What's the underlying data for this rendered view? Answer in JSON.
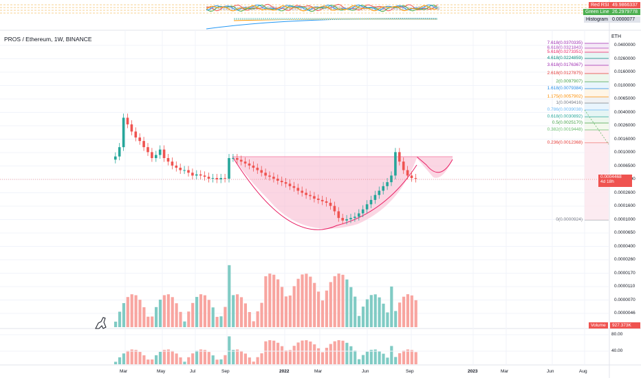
{
  "chart_title": "PROS / Ethereum, 1W, BINANCE",
  "price_unit": "ETH",
  "indicator": {
    "rsi_label": "Red RSI",
    "rsi_value": "49.9866337",
    "rsi_color": "#ef5350",
    "green_label": "Green Line",
    "green_value": "26.2979778",
    "green_color": "#4caf50",
    "hist_label": "Histogram",
    "hist_value": "0.0000077",
    "hist_color": "#b2b5be"
  },
  "price_axis_ticks": [
    "0.0400000",
    "0.0260000",
    "0.0160000",
    "0.0100000",
    "0.0065000",
    "0.0040000",
    "0.0026000",
    "0.0016000",
    "0.0010000",
    "0.0006500",
    "0.0004000",
    "0.0002600",
    "0.0001600",
    "0.0001000",
    "0.0000650",
    "0.0000400",
    "0.0000260",
    "0.0000170",
    "0.0000110",
    "0.0000070",
    "0.0000046"
  ],
  "current_price": "0.0004468",
  "countdown": "4d 18h",
  "volume_label": "Volume",
  "volume_value": "927.373K",
  "lower_axis_ticks": [
    "80.00",
    "40.00"
  ],
  "fib_levels": [
    {
      "label": "7.618(0.0370335)",
      "color": "#9c27b0"
    },
    {
      "label": "6.618(0.0321843)",
      "color": "#ab47bc"
    },
    {
      "label": "5.618(0.0273351)",
      "color": "#e91e63"
    },
    {
      "label": "4.618(0.0224859)",
      "color": "#00897b"
    },
    {
      "label": "3.618(0.0176367)",
      "color": "#9c27b0"
    },
    {
      "label": "2.618(0.0127875)",
      "color": "#e53935"
    },
    {
      "label": "2(0.0097907)",
      "color": "#43a047"
    },
    {
      "label": "1.618(0.0079384)",
      "color": "#1e88e5"
    },
    {
      "label": "1.175(0.0057902)",
      "color": "#fb8c00"
    },
    {
      "label": "1(0.0049416)",
      "color": "#787b86"
    },
    {
      "label": "0.786(0.0039038)",
      "color": "#64b5f6"
    },
    {
      "label": "0.618(0.0030892)",
      "color": "#26a69a"
    },
    {
      "label": "0.5(0.0025170)",
      "color": "#43a047"
    },
    {
      "label": "0.382(0.0019448)",
      "color": "#66bb6a"
    },
    {
      "label": "0.236(0.0012368)",
      "color": "#e53935"
    },
    {
      "label": "0(0.0000924)",
      "color": "#787b86"
    }
  ],
  "time_axis_ticks": [
    "Mar",
    "May",
    "Jul",
    "Sep",
    "2022",
    "Mar",
    "Jun",
    "Sep",
    "2023",
    "Mar",
    "Jun",
    "Aug"
  ],
  "chart_data": {
    "type": "candlestick",
    "title": "PROS / Ethereum, 1W, BINANCE",
    "scale": "log",
    "y_unit": "ETH",
    "up_color": "#26a69a",
    "down_color": "#ef5350",
    "pattern": "cup and handle",
    "candles_close_approx": [
      0.00095,
      0.0013,
      0.0035,
      0.0028,
      0.0022,
      0.0018,
      0.0016,
      0.0013,
      0.0011,
      0.0009,
      0.001,
      0.0012,
      0.0009,
      0.0008,
      0.0007,
      0.00065,
      0.0006,
      0.0006,
      0.00055,
      0.0005,
      0.00052,
      0.0005,
      0.00048,
      0.00045,
      0.00046,
      0.00044,
      0.00046,
      0.00045,
      0.0009,
      0.0009,
      0.00085,
      0.0008,
      0.00075,
      0.0007,
      0.00065,
      0.0006,
      0.00055,
      0.0005,
      0.00048,
      0.00045,
      0.00042,
      0.0004,
      0.00038,
      0.00035,
      0.00033,
      0.0003,
      0.00028,
      0.00026,
      0.00025,
      0.00023,
      0.00022,
      0.00021,
      0.0002,
      0.00018,
      0.00015,
      0.00012,
      0.00011,
      0.000115,
      0.00012,
      0.000125,
      0.00014,
      0.00016,
      0.00019,
      0.00022,
      0.00026,
      0.0003,
      0.00035,
      0.0004,
      0.0005,
      0.0011,
      0.0008,
      0.0006,
      0.0005,
      0.00046,
      0.00045
    ]
  }
}
